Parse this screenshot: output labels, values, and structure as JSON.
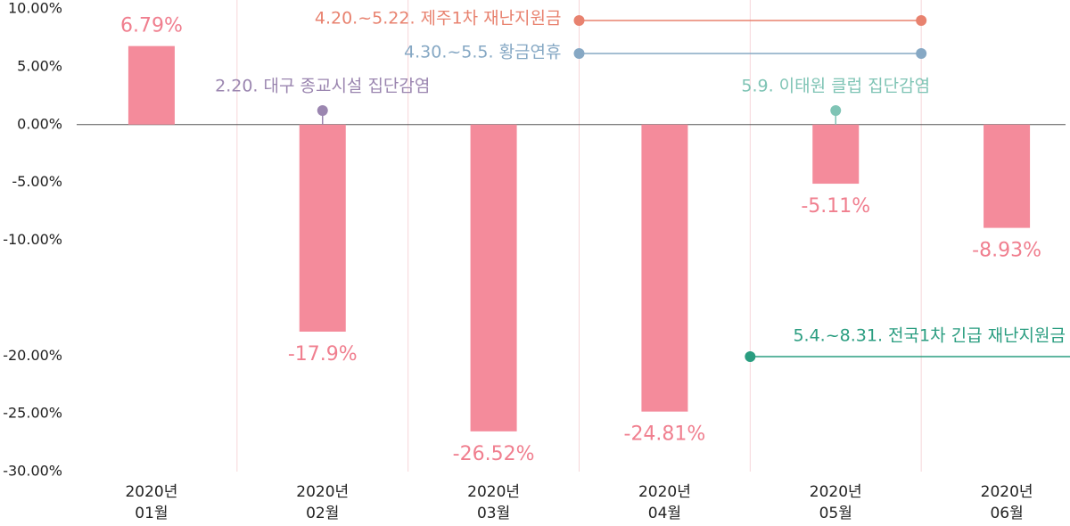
{
  "chart_data": {
    "type": "bar",
    "categories": [
      "2020년\n01월",
      "2020년\n02월",
      "2020년\n03월",
      "2020년\n04월",
      "2020년\n05월",
      "2020년\n06월"
    ],
    "values": [
      6.79,
      -17.9,
      -26.52,
      -24.81,
      -5.11,
      -8.93
    ],
    "value_labels": [
      "6.79%",
      "-17.9%",
      "-26.52%",
      "-24.81%",
      "-5.11%",
      "-8.93%"
    ],
    "color": "#f48b9b",
    "label_color": "#f07f8f",
    "ylim": [
      -30,
      10
    ],
    "yticks": [
      {
        "value": 10,
        "label": "10.00%"
      },
      {
        "value": 5,
        "label": "5.00%"
      },
      {
        "value": 0,
        "label": "0.00%"
      },
      {
        "value": -5,
        "label": "-5.00%"
      },
      {
        "value": -10,
        "label": "-10.00%"
      },
      {
        "value": -20,
        "label": "-20.00%"
      },
      {
        "value": -25,
        "label": "-25.00%"
      },
      {
        "value": -30,
        "label": "-30.00%"
      }
    ],
    "annotations": [
      {
        "text": "4.20.~5.22. 제주1차 재난지원금",
        "color": "#e8826f"
      },
      {
        "text": "4.30.~5.5. 황금연휴",
        "color": "#86a8c4"
      },
      {
        "text": "2.20. 대구 종교시설 집단감염",
        "color": "#9b86b0"
      },
      {
        "text": "5.9. 이태원 클럽 집단감염",
        "color": "#7fc4b5"
      },
      {
        "text": "5.4.~8.31. 전국1차 긴급 재난지원금",
        "color": "#2a9d80"
      }
    ]
  }
}
